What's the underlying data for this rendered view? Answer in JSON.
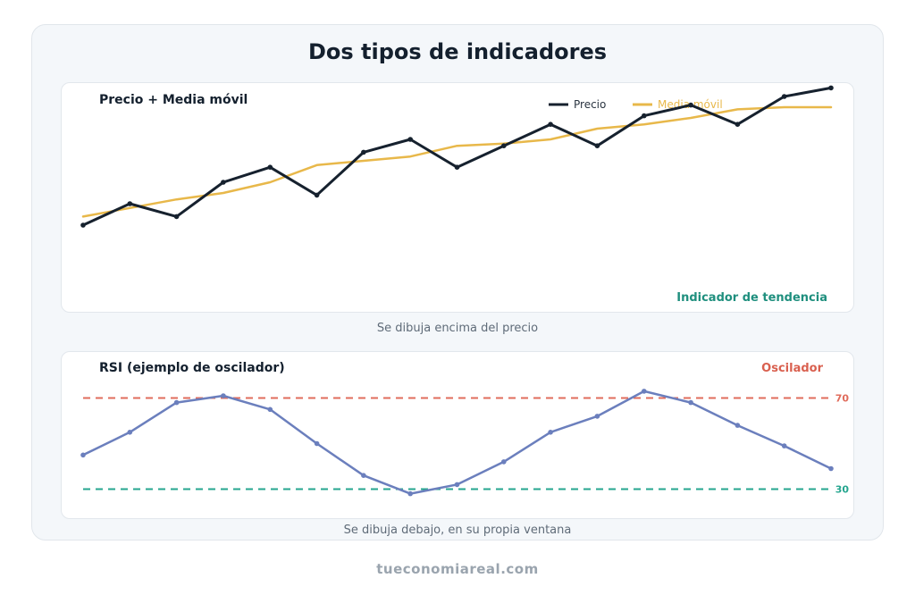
{
  "title": "Dos tipos de indicadores",
  "footer": "tueconomiareal.com",
  "colors": {
    "price": "#16212e",
    "moving_average": "#e8b84a",
    "rsi": "#6b7fbd",
    "overbought": "#e06c5c",
    "oversold": "#26a68f",
    "trend_label": "#1f8f7e",
    "oscillator_label": "#d9604f"
  },
  "chart_data": [
    {
      "type": "line",
      "title": "Precio + Media móvil",
      "annotation": "Indicador de tendencia",
      "caption": "Se dibuja encima del precio",
      "legend_placement": "top-right",
      "grid": false,
      "x": [
        1,
        2,
        3,
        4,
        5,
        6,
        7,
        8,
        9,
        10,
        11,
        12,
        13,
        14,
        15,
        16,
        17
      ],
      "ylim": [
        0,
        100
      ],
      "series": [
        {
          "name": "Precio",
          "values": [
            20,
            30,
            24,
            40,
            47,
            34,
            54,
            60,
            47,
            57,
            67,
            57,
            71,
            76,
            67,
            80,
            84
          ]
        },
        {
          "name": "Media móvil",
          "values": [
            24,
            28,
            32,
            35,
            40,
            48,
            50,
            52,
            57,
            58,
            60,
            65,
            67,
            70,
            74,
            75,
            75
          ]
        }
      ]
    },
    {
      "type": "line",
      "title": "RSI (ejemplo de oscilador)",
      "annotation": "Oscilador",
      "caption": "Se dibuja debajo, en su propia ventana",
      "grid": false,
      "x": [
        1,
        2,
        3,
        4,
        5,
        6,
        7,
        8,
        9,
        10,
        11,
        12,
        13,
        14,
        15,
        16,
        17
      ],
      "ylim": [
        20,
        80
      ],
      "reference_lines": [
        {
          "value": 70,
          "label": "70"
        },
        {
          "value": 30,
          "label": "30"
        }
      ],
      "series": [
        {
          "name": "",
          "values": [
            45,
            55,
            68,
            71,
            65,
            50,
            36,
            28,
            32,
            42,
            55,
            62,
            73,
            68,
            58,
            49,
            39
          ]
        }
      ]
    }
  ]
}
